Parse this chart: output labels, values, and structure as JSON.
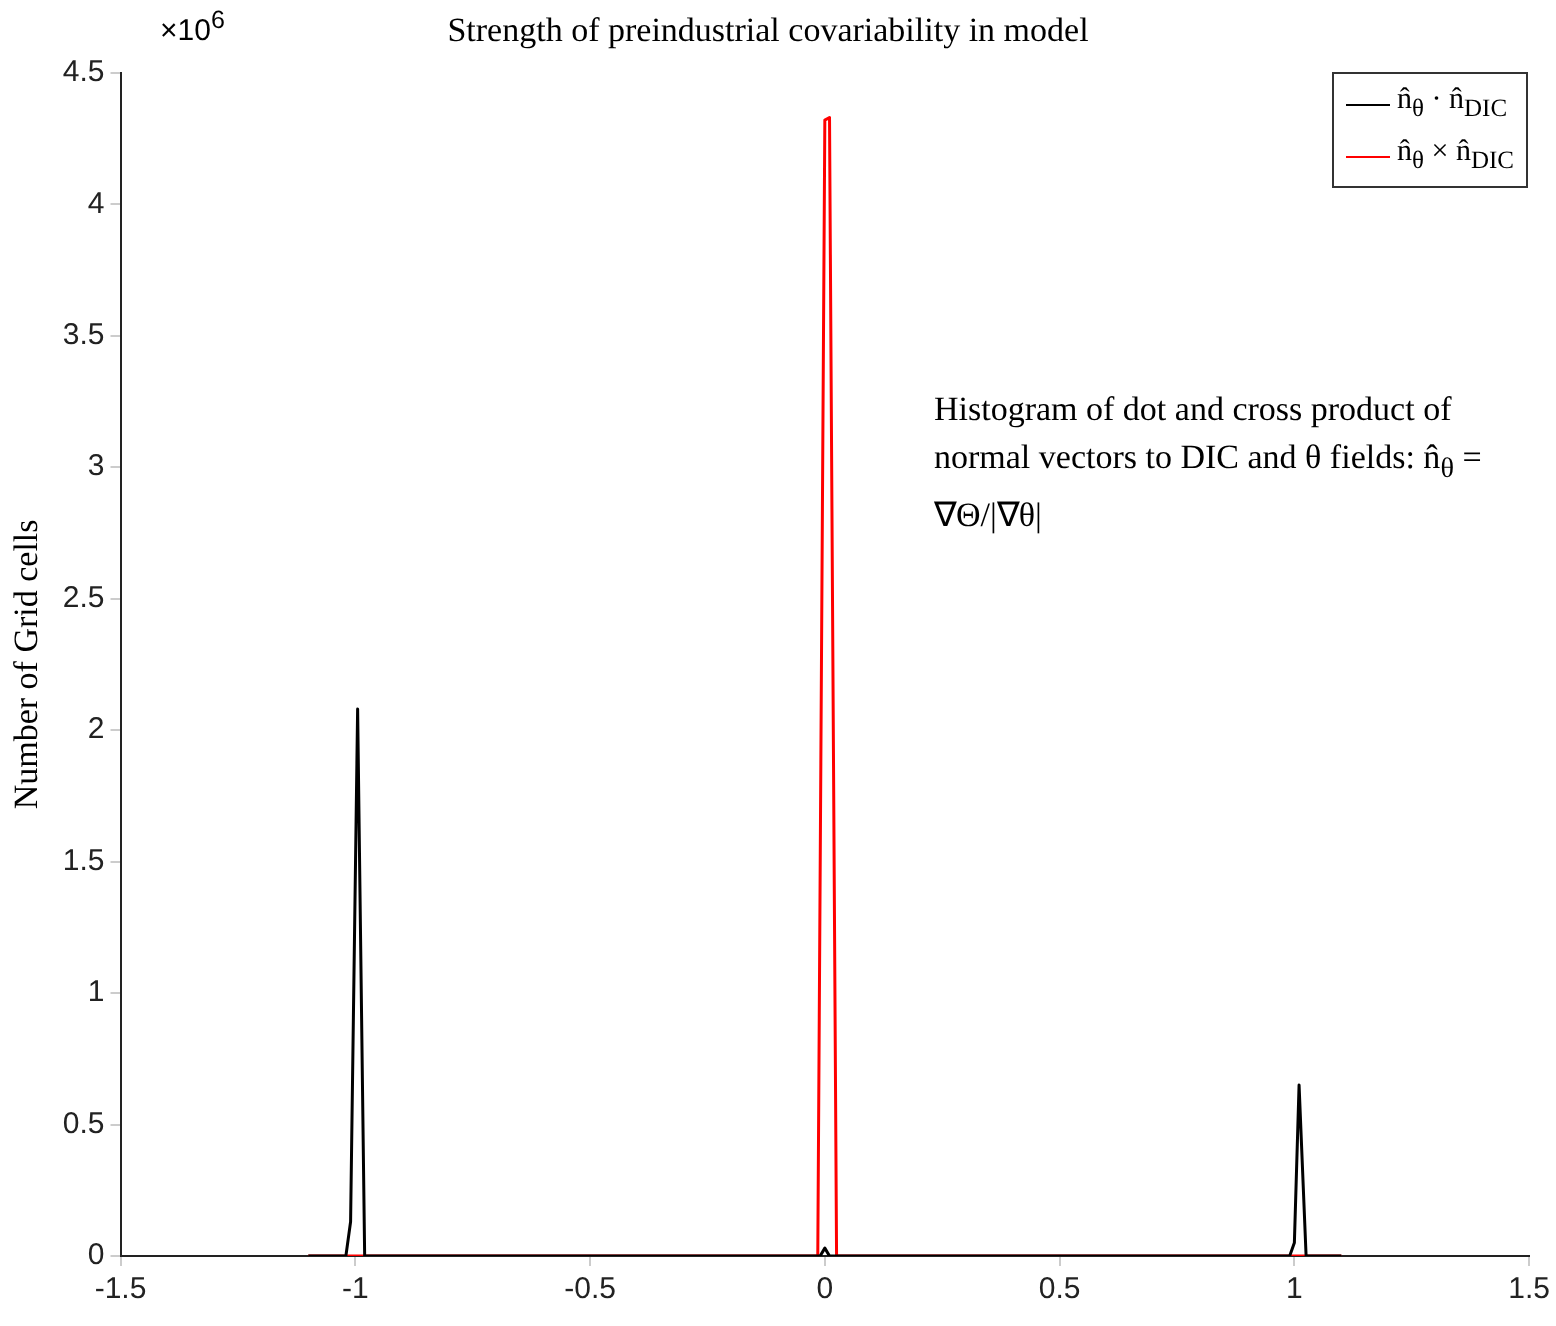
{
  "chart_data": {
    "type": "line",
    "title": "Strength of preindustrial covariability in model",
    "ylabel": "Number of Grid cells",
    "annotations": [
      "×10$^{6}$",
      "Histogram of dot and cross product of normal vectors to DIC and θ fields: n̂$_{θ}$ = ∇Θ/|∇θ|"
    ],
    "series": [
      {
        "name": "n̂$_{θ}$ · n̂$_{DIC}$",
        "color": "#000000",
        "x": [
          -1.1,
          -1.02,
          -1.01,
          -0.995,
          -0.98,
          -0.01,
          0,
          0.01,
          0.99,
          1.0,
          1.01,
          1.025,
          1.1
        ],
        "values": [
          0,
          0,
          0.13,
          2.08,
          0,
          0,
          0.03,
          0,
          0,
          0.05,
          0.65,
          0,
          0
        ]
      },
      {
        "name": "n̂$_{θ}$ × n̂$_{DIC}$",
        "color": "#ff0000",
        "x": [
          -1.1,
          -0.015,
          0.0,
          0.01,
          0.025,
          1.1
        ],
        "values": [
          0,
          0,
          4.32,
          4.33,
          0,
          0
        ]
      }
    ],
    "xlim": [
      -1.5,
      1.5
    ],
    "xticks": [
      -1.5,
      -1,
      -0.5,
      0,
      0.5,
      1,
      1.5
    ],
    "ylim": [
      0,
      4.5
    ],
    "yticks": [
      0,
      0.5,
      1,
      1.5,
      2,
      2.5,
      3,
      3.5,
      4,
      4.5
    ],
    "grid": false,
    "legend": "top right",
    "marker": "none",
    "line_style": "solid"
  }
}
